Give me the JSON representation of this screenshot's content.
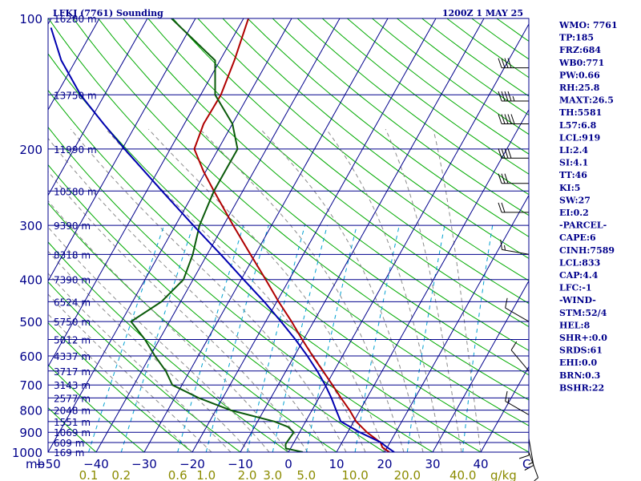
{
  "title_left": "LFKJ (7761) Sounding",
  "title_right": "1200Z  1 MAY 25",
  "colors": {
    "frame": "#00008b",
    "isobar": "#00008b",
    "isotherm": "#00008b",
    "dry_adiabat": "#00aa00",
    "moist_adiabat": "#8b8b8b",
    "mixing_ratio": "#00a0d0",
    "temperature": "#b00000",
    "dewpoint": "#0a5a0a",
    "parcel": "#0000b0",
    "wind": "#000000"
  },
  "chart_data": {
    "type": "line",
    "title": "LFKJ (7761) Sounding",
    "pressure_unit": "mb",
    "temperature_unit": "C",
    "mixing_ratio_unit": "g/kg",
    "plim": [
      1000,
      100
    ],
    "tlim_bottom": [
      -50,
      50
    ],
    "pressure_ticks": [
      {
        "p": 100,
        "label": "100"
      },
      {
        "p": 200,
        "label": "200"
      },
      {
        "p": 300,
        "label": "300"
      },
      {
        "p": 400,
        "label": "400"
      },
      {
        "p": 500,
        "label": "500"
      },
      {
        "p": 600,
        "label": "600"
      },
      {
        "p": 700,
        "label": "700"
      },
      {
        "p": 800,
        "label": "800"
      },
      {
        "p": 900,
        "label": "900"
      },
      {
        "p": 1000,
        "label": "1000"
      }
    ],
    "temperature_ticks": [
      "−50",
      "−40",
      "−30",
      "−20",
      "−10",
      "0",
      "10",
      "20",
      "30",
      "40"
    ],
    "temperature_tick_values": [
      -50,
      -40,
      -30,
      -20,
      -10,
      0,
      10,
      20,
      30,
      40
    ],
    "mixing_ratio_ticks": [
      {
        "w": 0.1,
        "label": "0.1"
      },
      {
        "w": 0.2,
        "label": "0.2"
      },
      {
        "w": 0.6,
        "label": "0.6"
      },
      {
        "w": 1.0,
        "label": "1.0"
      },
      {
        "w": 2.0,
        "label": "2.0"
      },
      {
        "w": 3.0,
        "label": "3.0"
      },
      {
        "w": 5.0,
        "label": "5.0"
      },
      {
        "w": 10.0,
        "label": "10.0"
      },
      {
        "w": 20.0,
        "label": "20.0"
      },
      {
        "w": 40.0,
        "label": "40.0"
      }
    ],
    "height_labels": [
      {
        "p": 100,
        "label": "16280 m"
      },
      {
        "p": 150,
        "label": "13750 m"
      },
      {
        "p": 200,
        "label": "11990 m"
      },
      {
        "p": 250,
        "label": "10580 m"
      },
      {
        "p": 300,
        "label": "9390 m"
      },
      {
        "p": 350,
        "label": "8318 m"
      },
      {
        "p": 400,
        "label": "7390 m"
      },
      {
        "p": 450,
        "label": "6524 m"
      },
      {
        "p": 500,
        "label": "5750 m"
      },
      {
        "p": 550,
        "label": "5012 m"
      },
      {
        "p": 600,
        "label": "4337 m"
      },
      {
        "p": 650,
        "label": "3717 m"
      },
      {
        "p": 700,
        "label": "3143 m"
      },
      {
        "p": 750,
        "label": "2577 m"
      },
      {
        "p": 800,
        "label": "2048 m"
      },
      {
        "p": 850,
        "label": "1551 m"
      },
      {
        "p": 900,
        "label": "1069 m"
      },
      {
        "p": 950,
        "label": "609 m"
      },
      {
        "p": 1000,
        "label": "169 m"
      }
    ],
    "series": [
      {
        "id": "temperature",
        "points": [
          [
            1000,
            21
          ],
          [
            975,
            19
          ],
          [
            950,
            18
          ],
          [
            900,
            14
          ],
          [
            850,
            10.5
          ],
          [
            800,
            7.8
          ],
          [
            750,
            4.6
          ],
          [
            700,
            1.3
          ],
          [
            650,
            -2.3
          ],
          [
            600,
            -6.2
          ],
          [
            550,
            -10.3
          ],
          [
            500,
            -14.6
          ],
          [
            450,
            -19.6
          ],
          [
            400,
            -24.9
          ],
          [
            350,
            -31.0
          ],
          [
            300,
            -38.0
          ],
          [
            250,
            -46.0
          ],
          [
            225,
            -50.5
          ],
          [
            200,
            -55.0
          ],
          [
            175,
            -56.0
          ],
          [
            150,
            -55.8
          ],
          [
            125,
            -57.0
          ],
          [
            100,
            -59.0
          ]
        ]
      },
      {
        "id": "dewpoint",
        "points": [
          [
            1000,
            3
          ],
          [
            980,
            -1
          ],
          [
            960,
            -1.5
          ],
          [
            950,
            -1.5
          ],
          [
            900,
            -1.2
          ],
          [
            875,
            -3
          ],
          [
            850,
            -6.5
          ],
          [
            800,
            -17
          ],
          [
            750,
            -25
          ],
          [
            700,
            -32
          ],
          [
            650,
            -35
          ],
          [
            600,
            -39
          ],
          [
            550,
            -43
          ],
          [
            500,
            -48
          ],
          [
            450,
            -44
          ],
          [
            400,
            -42
          ],
          [
            350,
            -43
          ],
          [
            300,
            -45
          ],
          [
            250,
            -46
          ],
          [
            200,
            -46
          ],
          [
            175,
            -50
          ],
          [
            150,
            -57
          ],
          [
            125,
            -61
          ],
          [
            100,
            -75
          ],
          [
            90,
            -78
          ],
          [
            80,
            -80
          ]
        ]
      },
      {
        "id": "parcel",
        "points": [
          [
            1000,
            22
          ],
          [
            975,
            20
          ],
          [
            950,
            18.1
          ],
          [
            900,
            12.5
          ],
          [
            850,
            7.3
          ],
          [
            800,
            5.0
          ],
          [
            750,
            2.6
          ],
          [
            700,
            -0.2
          ],
          [
            650,
            -3.5
          ],
          [
            600,
            -7.3
          ],
          [
            550,
            -11.7
          ],
          [
            500,
            -16.8
          ],
          [
            450,
            -22.6
          ],
          [
            400,
            -29.5
          ],
          [
            350,
            -37.2
          ],
          [
            300,
            -46.3
          ],
          [
            250,
            -56.8
          ],
          [
            200,
            -69.5
          ],
          [
            175,
            -76.8
          ],
          [
            150,
            -85.0
          ],
          [
            125,
            -93.0
          ],
          [
            105,
            -99.0
          ]
        ]
      }
    ],
    "wind_barbs": [
      {
        "p": 130,
        "dir": 270,
        "speed": 40
      },
      {
        "p": 155,
        "dir": 270,
        "speed": 45
      },
      {
        "p": 175,
        "dir": 270,
        "speed": 50
      },
      {
        "p": 210,
        "dir": 270,
        "speed": 40
      },
      {
        "p": 240,
        "dir": 270,
        "speed": 30
      },
      {
        "p": 280,
        "dir": 270,
        "speed": 20
      },
      {
        "p": 350,
        "dir": 280,
        "speed": 15
      },
      {
        "p": 500,
        "dir": 300,
        "speed": 10
      },
      {
        "p": 650,
        "dir": 320,
        "speed": 10
      },
      {
        "p": 820,
        "dir": 300,
        "speed": 15
      },
      {
        "p": 880,
        "dir": 180,
        "speed": 10
      },
      {
        "p": 930,
        "dir": 170,
        "speed": 15
      },
      {
        "p": 1000,
        "dir": 160,
        "speed": 5
      }
    ]
  },
  "indices": [
    "WMO: 7761",
    "TP:185",
    "FRZ:684",
    "WB0:771",
    "PW:0.66",
    "RH:25.8",
    "MAXT:26.5",
    "TH:5581",
    "L57:6.8",
    "LCL:919",
    "LI:2.4",
    "SI:4.1",
    "TT:46",
    "KI:5",
    "SW:27",
    "EI:0.2",
    "-PARCEL-",
    "CAPE:6",
    "CINH:7589",
    "LCL:833",
    "CAP:4.4",
    "LFC:-1",
    "-WIND-",
    "STM:52/4",
    "HEL:8",
    "SHR+:0.0",
    "SRDS:61",
    "EHI:0.0",
    "BRN:0.3",
    "BSHR:22"
  ]
}
